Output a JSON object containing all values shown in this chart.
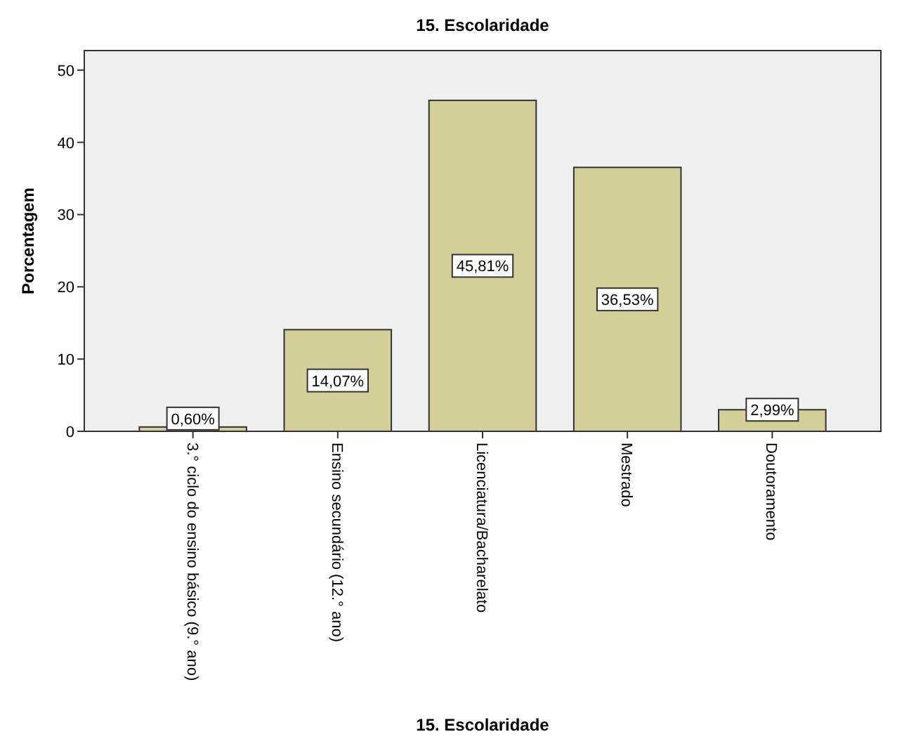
{
  "chart_data": {
    "type": "bar",
    "title": "15. Escolaridade",
    "xlabel": "15. Escolaridade",
    "ylabel": "Porcentagem",
    "categories": [
      "3.° ciclo do ensino básico (9.° ano)",
      "Ensino secundário (12.° ano)",
      "Licenciatura/Bacharelato",
      "Mestrado",
      "Doutoramento"
    ],
    "values": [
      0.6,
      14.07,
      45.81,
      36.53,
      2.99
    ],
    "value_labels": [
      "0,60%",
      "14,07%",
      "45,81%",
      "36,53%",
      "2,99%"
    ],
    "color": "#d3cf98",
    "ylim": [
      0,
      52.7
    ],
    "yticks": [
      0,
      10,
      20,
      30,
      40,
      50
    ],
    "grid": false
  }
}
